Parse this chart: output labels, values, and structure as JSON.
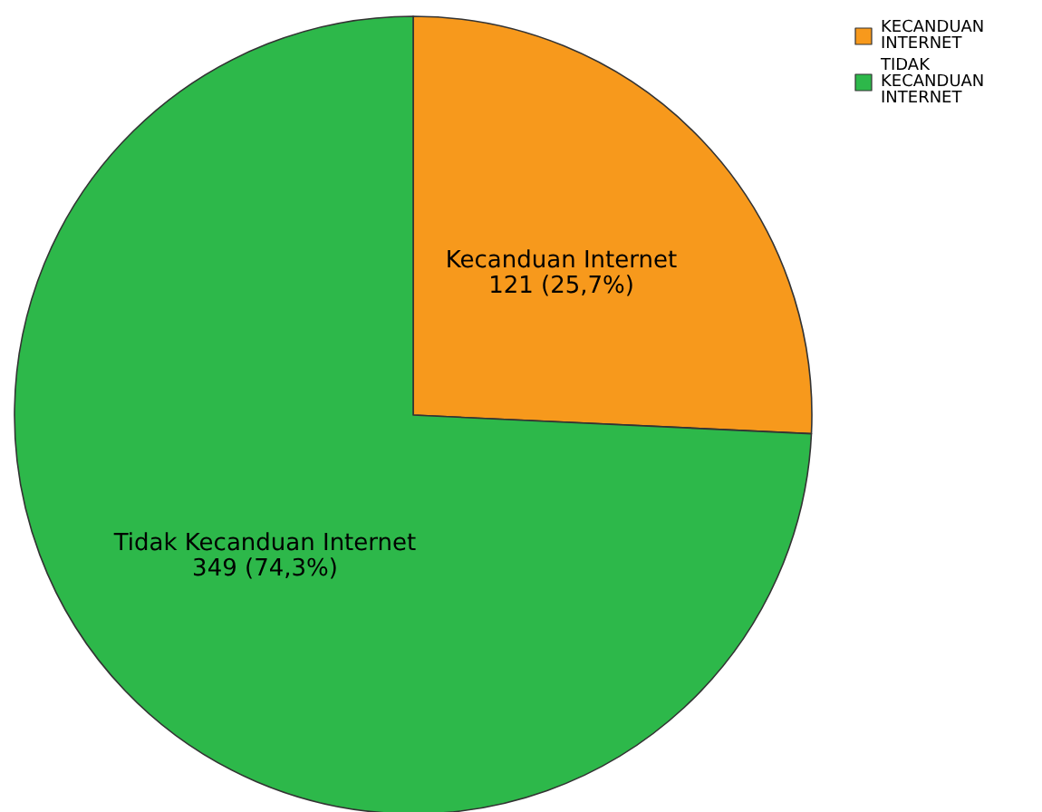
{
  "chart_data": {
    "type": "pie",
    "categories": [
      "KECANDUAN INTERNET",
      "TIDAK KECANDUAN INTERNET"
    ],
    "values": [
      121,
      349
    ],
    "colors": [
      "#f7991c",
      "#2db84a"
    ],
    "value_labels": [
      "Kecanduan Internet\n121 (25,7%)",
      "Tidak Kecanduan Internet\n349 (74,3%)"
    ],
    "legend": "top right"
  }
}
